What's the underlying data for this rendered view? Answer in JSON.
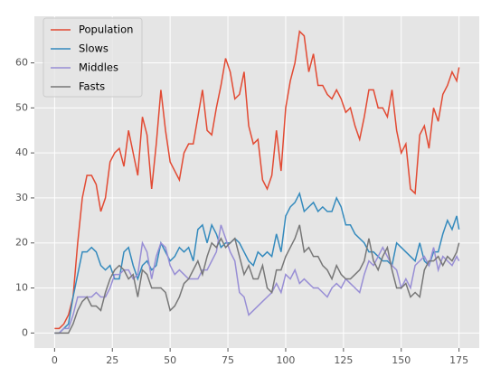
{
  "chart_data": {
    "type": "line",
    "x": [
      0,
      2,
      4,
      6,
      8,
      10,
      12,
      14,
      16,
      18,
      20,
      22,
      24,
      26,
      28,
      30,
      32,
      34,
      36,
      38,
      40,
      42,
      44,
      46,
      48,
      50,
      52,
      54,
      56,
      58,
      60,
      62,
      64,
      66,
      68,
      70,
      72,
      74,
      76,
      78,
      80,
      82,
      84,
      86,
      88,
      90,
      92,
      94,
      96,
      98,
      100,
      102,
      104,
      106,
      108,
      110,
      112,
      114,
      116,
      118,
      120,
      122,
      124,
      126,
      128,
      130,
      132,
      134,
      136,
      138,
      140,
      142,
      144,
      146,
      148,
      150,
      152,
      154,
      156,
      158,
      160,
      162,
      164,
      166,
      168,
      170,
      172,
      174,
      175
    ],
    "series": [
      {
        "name": "Population",
        "color": "#E24A33",
        "values": [
          1,
          1,
          2,
          4,
          8,
          20,
          30,
          35,
          35,
          33,
          27,
          30,
          38,
          40,
          41,
          37,
          45,
          40,
          35,
          48,
          44,
          32,
          42,
          54,
          45,
          38,
          36,
          34,
          40,
          42,
          42,
          48,
          54,
          45,
          44,
          50,
          55,
          61,
          58,
          52,
          53,
          58,
          46,
          42,
          43,
          34,
          32,
          35,
          45,
          36,
          50,
          56,
          60,
          67,
          66,
          58,
          62,
          55,
          55,
          53,
          52,
          54,
          52,
          49,
          50,
          46,
          43,
          48,
          54,
          54,
          50,
          50,
          48,
          54,
          45,
          40,
          42,
          32,
          31,
          44,
          46,
          41,
          50,
          47,
          53,
          55,
          58,
          56,
          59
        ]
      },
      {
        "name": "Slows",
        "color": "#348ABD",
        "values": [
          0,
          0,
          1,
          2,
          8,
          13,
          18,
          18,
          19,
          18,
          15,
          14,
          15,
          12,
          12,
          18,
          19,
          15,
          12,
          15,
          16,
          14,
          15,
          20,
          18,
          16,
          17,
          19,
          18,
          19,
          16,
          23,
          24,
          20,
          24,
          22,
          19,
          20,
          20,
          21,
          20,
          18,
          16,
          15,
          18,
          17,
          18,
          17,
          22,
          18,
          26,
          28,
          29,
          31,
          27,
          28,
          29,
          27,
          28,
          27,
          27,
          30,
          28,
          24,
          24,
          22,
          21,
          20,
          18,
          18,
          17,
          16,
          16,
          15,
          20,
          19,
          18,
          17,
          16,
          20,
          16,
          15,
          18,
          18,
          22,
          25,
          23,
          26,
          23
        ]
      },
      {
        "name": "Middles",
        "color": "#988ED5",
        "values": [
          0,
          0,
          1,
          1,
          4,
          8,
          8,
          8,
          8,
          9,
          8,
          8,
          10,
          13,
          13,
          14,
          14,
          12,
          13,
          20,
          18,
          12,
          17,
          20,
          19,
          15,
          13,
          14,
          13,
          12,
          12,
          12,
          14,
          14,
          16,
          18,
          24,
          21,
          18,
          16,
          9,
          8,
          4,
          5,
          6,
          7,
          8,
          9,
          11,
          9,
          13,
          12,
          14,
          11,
          12,
          11,
          10,
          10,
          9,
          8,
          10,
          11,
          10,
          12,
          11,
          10,
          9,
          13,
          16,
          15,
          17,
          19,
          17,
          15,
          14,
          10,
          12,
          10,
          15,
          16,
          17,
          15,
          19,
          14,
          17,
          16,
          15,
          17,
          16
        ]
      },
      {
        "name": "Fasts",
        "color": "#777777",
        "values": [
          0,
          0,
          0,
          0,
          2,
          5,
          7,
          8,
          6,
          6,
          5,
          9,
          12,
          14,
          15,
          14,
          12,
          13,
          8,
          14,
          13,
          10,
          10,
          10,
          9,
          5,
          6,
          8,
          11,
          12,
          14,
          16,
          13,
          17,
          20,
          19,
          21,
          19,
          20,
          21,
          17,
          13,
          15,
          12,
          12,
          15,
          10,
          9,
          14,
          14,
          17,
          19,
          21,
          24,
          18,
          19,
          17,
          17,
          15,
          14,
          12,
          15,
          13,
          12,
          12,
          13,
          14,
          16,
          21,
          16,
          14,
          17,
          19,
          14,
          10,
          10,
          11,
          8,
          9,
          8,
          14,
          16,
          16,
          17,
          15,
          17,
          16,
          18,
          20
        ]
      }
    ],
    "xlim": [
      -8.75,
      183.75
    ],
    "xticks": [
      0,
      25,
      50,
      75,
      100,
      125,
      150,
      175
    ],
    "ylim": [
      -3.35,
      70.35
    ],
    "yticks": [
      0,
      10,
      20,
      30,
      40,
      50,
      60
    ],
    "grid": true,
    "legend": "upper left"
  }
}
